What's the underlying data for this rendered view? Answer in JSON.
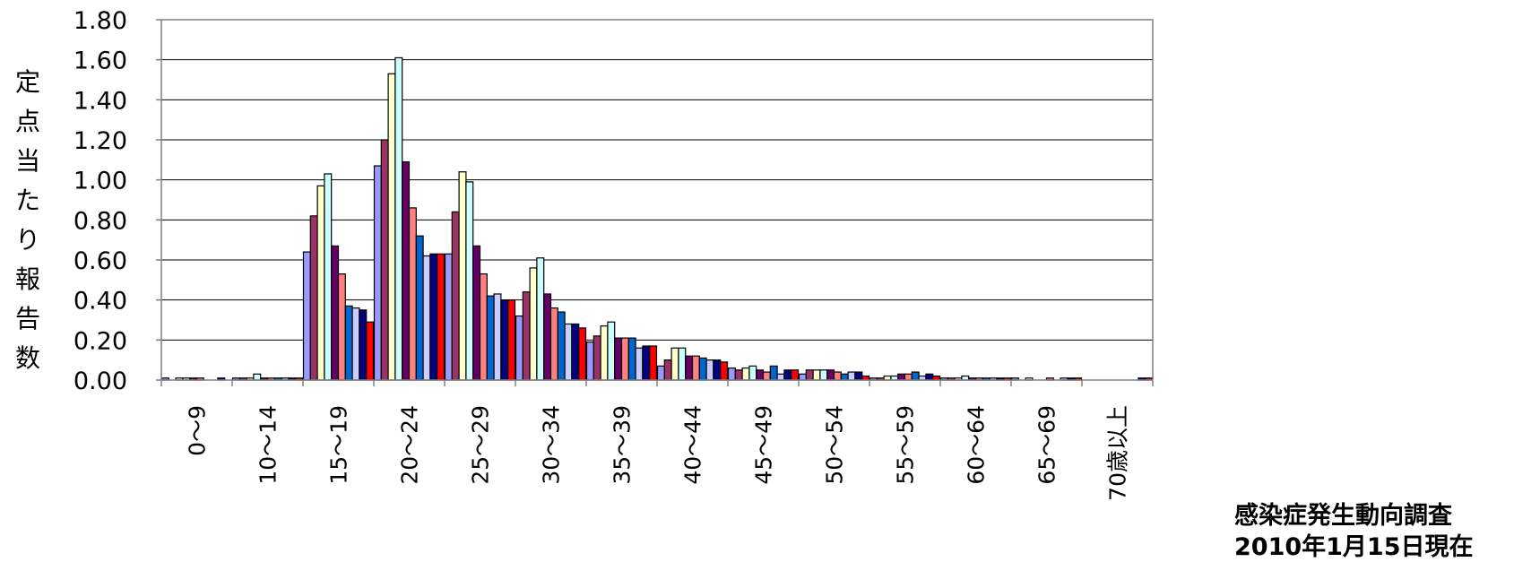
{
  "chart_data": {
    "type": "bar",
    "ylabel": "定点当たり報告数",
    "ylim": [
      0,
      1.8
    ],
    "ytick_step": 0.2,
    "grid": true,
    "categories": [
      "0～9",
      "10～14",
      "15～19",
      "20～24",
      "25～29",
      "30～34",
      "35～39",
      "40～44",
      "45～49",
      "50～54",
      "55～59",
      "60～64",
      "65～69",
      "70歳以上"
    ],
    "series_colors": [
      "#9999ff",
      "#993366",
      "#ffffcc",
      "#ccffff",
      "#660066",
      "#ff8080",
      "#0066cc",
      "#ccccff",
      "#000080",
      "#ff0000"
    ],
    "series": [
      {
        "values": [
          0.01,
          0.01,
          0.64,
          1.07,
          0.63,
          0.32,
          0.19,
          0.07,
          0.06,
          0.03,
          0.01,
          0.01,
          0.01,
          0.0
        ]
      },
      {
        "values": [
          0.0,
          0.01,
          0.82,
          1.2,
          0.84,
          0.44,
          0.22,
          0.1,
          0.05,
          0.05,
          0.01,
          0.01,
          0.0,
          0.0
        ]
      },
      {
        "values": [
          0.01,
          0.01,
          0.97,
          1.53,
          1.04,
          0.56,
          0.27,
          0.16,
          0.06,
          0.05,
          0.02,
          0.01,
          0.01,
          0.0
        ]
      },
      {
        "values": [
          0.01,
          0.03,
          1.03,
          1.61,
          0.99,
          0.61,
          0.29,
          0.16,
          0.07,
          0.05,
          0.02,
          0.02,
          0.0,
          0.0
        ]
      },
      {
        "values": [
          0.01,
          0.01,
          0.67,
          1.09,
          0.67,
          0.43,
          0.21,
          0.12,
          0.05,
          0.05,
          0.03,
          0.01,
          0.0,
          0.0
        ]
      },
      {
        "values": [
          0.01,
          0.01,
          0.53,
          0.86,
          0.53,
          0.36,
          0.21,
          0.12,
          0.04,
          0.04,
          0.03,
          0.01,
          0.01,
          0.0
        ]
      },
      {
        "values": [
          0.0,
          0.01,
          0.37,
          0.72,
          0.42,
          0.34,
          0.21,
          0.11,
          0.07,
          0.03,
          0.04,
          0.01,
          0.0,
          0.0
        ]
      },
      {
        "values": [
          0.0,
          0.01,
          0.36,
          0.62,
          0.43,
          0.28,
          0.16,
          0.1,
          0.03,
          0.04,
          0.02,
          0.01,
          0.01,
          0.0
        ]
      },
      {
        "values": [
          0.01,
          0.01,
          0.35,
          0.63,
          0.4,
          0.28,
          0.17,
          0.1,
          0.05,
          0.04,
          0.03,
          0.01,
          0.01,
          0.01
        ]
      },
      {
        "values": [
          0.0,
          0.01,
          0.29,
          0.63,
          0.4,
          0.26,
          0.17,
          0.09,
          0.05,
          0.02,
          0.02,
          0.01,
          0.01,
          0.01
        ]
      }
    ]
  },
  "footer": {
    "source": "感染症発生動向調査",
    "as_of": "2010年1月15日現在"
  }
}
